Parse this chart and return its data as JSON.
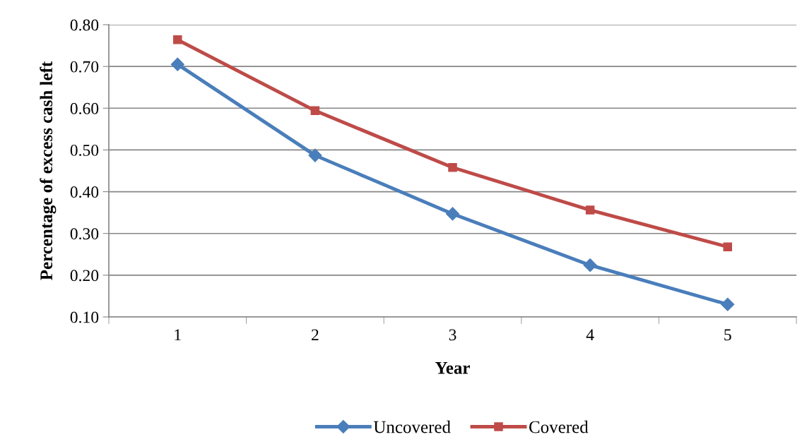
{
  "chart_data": {
    "type": "line",
    "xlabel": "Year",
    "ylabel": "Percentage of excess cash left",
    "categories": [
      "1",
      "2",
      "3",
      "4",
      "5"
    ],
    "series": [
      {
        "name": "Uncovered",
        "color": "#4a7ebb",
        "marker": "diamond",
        "values": [
          0.705,
          0.487,
          0.347,
          0.224,
          0.13
        ]
      },
      {
        "name": "Covered",
        "color": "#be4b48",
        "marker": "square",
        "values": [
          0.764,
          0.594,
          0.458,
          0.356,
          0.268
        ]
      }
    ],
    "ylim": [
      0.1,
      0.8
    ],
    "yticks": [
      {
        "value": 0.1,
        "label": "0.10"
      },
      {
        "value": 0.2,
        "label": "0.20"
      },
      {
        "value": 0.3,
        "label": "0.30"
      },
      {
        "value": 0.4,
        "label": "0.40"
      },
      {
        "value": 0.5,
        "label": "0.50"
      },
      {
        "value": 0.6,
        "label": "0.60"
      },
      {
        "value": 0.7,
        "label": "0.70"
      },
      {
        "value": 0.8,
        "label": "0.80"
      }
    ],
    "grid": "y",
    "legend": "bottom",
    "line_style": "solid"
  }
}
